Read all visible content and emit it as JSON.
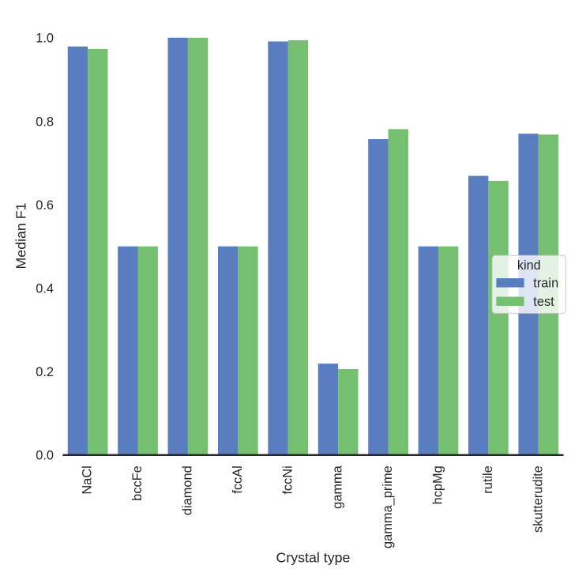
{
  "figure": {
    "background": "#ffffff",
    "text_color": "#262626",
    "axis_line_color": "#262626",
    "legend_border_color": "#cccccc",
    "legend_background": "#ffffff"
  },
  "chart_data": {
    "type": "bar",
    "title": "",
    "xlabel": "Crystal type",
    "ylabel": "Median F1",
    "categories": [
      "NaCl",
      "bccFe",
      "diamond",
      "fccAl",
      "fccNi",
      "gamma",
      "gamma_prime",
      "hcpMg",
      "rutile",
      "skutterudite"
    ],
    "series": [
      {
        "name": "train",
        "color": "#597dbf",
        "values": [
          0.979,
          0.5,
          1.0,
          0.5,
          0.991,
          0.219,
          0.757,
          0.5,
          0.669,
          0.77
        ]
      },
      {
        "name": "test",
        "color": "#75bf71",
        "values": [
          0.973,
          0.5,
          1.0,
          0.5,
          0.994,
          0.206,
          0.781,
          0.5,
          0.657,
          0.768
        ]
      }
    ],
    "ylim": [
      0,
      1.05
    ],
    "yticks": [
      {
        "value": 0.0,
        "label": "0.0"
      },
      {
        "value": 0.2,
        "label": "0.2"
      },
      {
        "value": 0.4,
        "label": "0.4"
      },
      {
        "value": 0.6,
        "label": "0.6"
      },
      {
        "value": 0.8,
        "label": "0.8"
      },
      {
        "value": 1.0,
        "label": "1.0"
      }
    ],
    "grid": false,
    "legend": {
      "title": "kind",
      "position": "center right",
      "entries": [
        "train",
        "test"
      ]
    }
  }
}
